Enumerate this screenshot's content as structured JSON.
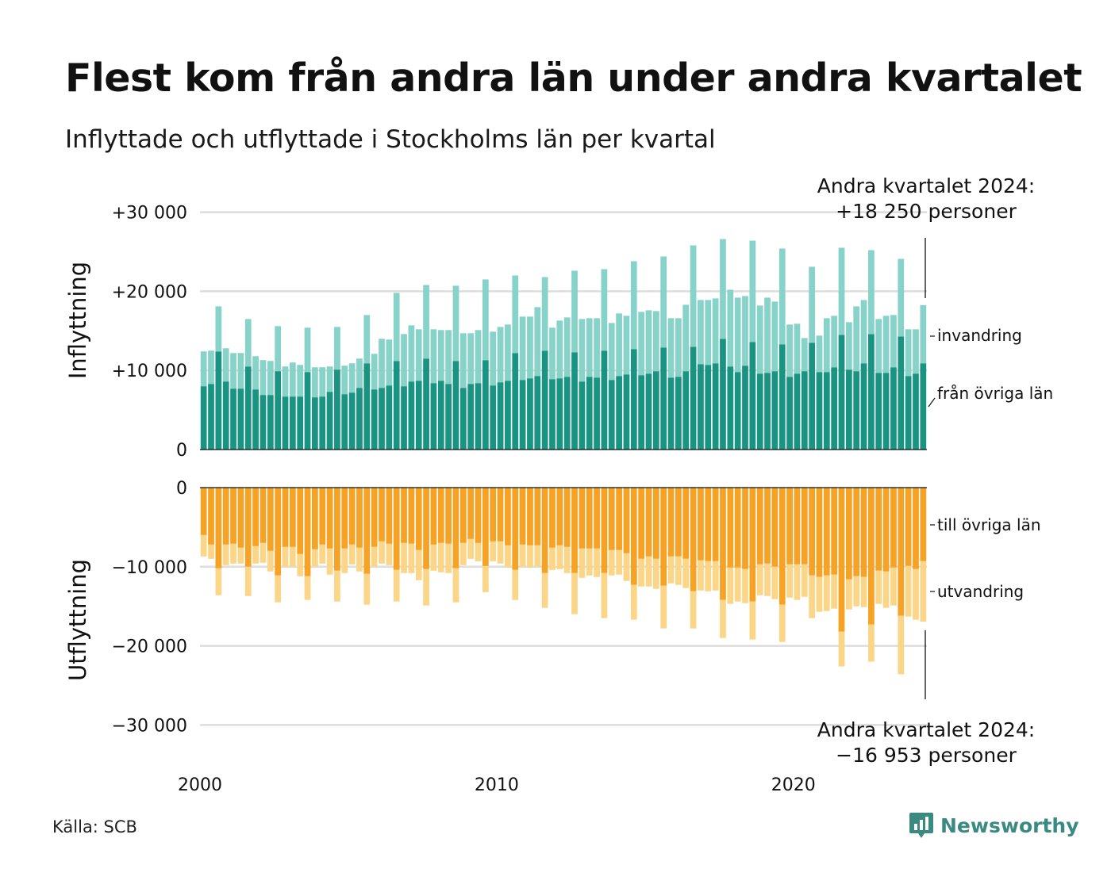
{
  "title": "Flest kom från andra län under andra kvartalet",
  "subtitle": "Inflyttade och utflyttade i Stockholms län per kvartal",
  "source": "Källa: SCB",
  "brand": "Newsworthy",
  "colors": {
    "from_other_counties": "#1a9482",
    "immigration": "#88d3c9",
    "to_other_counties": "#f5a225",
    "emigration": "#fbd588",
    "grid": "#dddddd",
    "brand": "#3b8a82"
  },
  "chart_data": {
    "type": "bar",
    "x_start": "2000 Q1",
    "x_end": "2024 Q2",
    "xticks": [
      "2000",
      "2010",
      "2020"
    ],
    "annotations": {
      "top": [
        "Andra kvartalet 2024:",
        "+18 250 personer"
      ],
      "bottom": [
        "Andra kvartalet 2024:",
        "−16 953 personer"
      ]
    },
    "top_panel": {
      "ylabel": "Inflyttning",
      "ylim": [
        0,
        30000
      ],
      "yticks": [
        {
          "value": 0,
          "label": "0"
        },
        {
          "value": 10000,
          "label": "+10 000"
        },
        {
          "value": 20000,
          "label": "+20 000"
        },
        {
          "value": 30000,
          "label": "+30 000"
        }
      ],
      "series": [
        {
          "name": "från övriga län",
          "values": [
            8000,
            8300,
            12400,
            8600,
            7700,
            7700,
            10500,
            7600,
            6900,
            6900,
            9900,
            6700,
            6700,
            6700,
            9800,
            6600,
            6700,
            7300,
            10100,
            7000,
            7200,
            7800,
            10900,
            7600,
            7800,
            8100,
            11200,
            8000,
            8600,
            8700,
            11500,
            8400,
            8700,
            8300,
            11200,
            7800,
            8300,
            8400,
            11300,
            8100,
            8500,
            8700,
            12200,
            8800,
            9000,
            9300,
            12500,
            8900,
            9000,
            9200,
            12300,
            8600,
            9200,
            9100,
            12500,
            8800,
            9300,
            9500,
            12700,
            9400,
            9600,
            9900,
            12900,
            9100,
            9200,
            9900,
            13000,
            10800,
            10700,
            10900,
            14000,
            10500,
            9800,
            10600,
            13600,
            9600,
            9700,
            9900,
            13300,
            9200,
            9600,
            9900,
            13500,
            9800,
            9800,
            10400,
            14500,
            10100,
            9900,
            10900,
            14600,
            9700,
            9700,
            10400,
            14300,
            9300,
            9600,
            10900
          ]
        },
        {
          "name": "invandring",
          "values": [
            4400,
            4200,
            5700,
            4200,
            4500,
            4500,
            6000,
            4200,
            4400,
            4300,
            5700,
            3800,
            4300,
            4000,
            5600,
            3800,
            3700,
            3200,
            5400,
            3600,
            3700,
            3700,
            6100,
            4500,
            6200,
            5800,
            8600,
            6600,
            7100,
            6500,
            9300,
            6800,
            6400,
            6800,
            9500,
            6900,
            6400,
            6700,
            10200,
            6800,
            7000,
            7100,
            9800,
            8000,
            7800,
            8700,
            9300,
            6500,
            7300,
            7500,
            10300,
            7900,
            7400,
            7500,
            10300,
            7200,
            7900,
            7400,
            11100,
            8000,
            8000,
            7600,
            11500,
            7500,
            7400,
            8400,
            12800,
            8100,
            8200,
            8200,
            12600,
            9700,
            9400,
            8800,
            12800,
            8600,
            9500,
            8800,
            12100,
            6600,
            6300,
            4200,
            9600,
            4600,
            6800,
            6500,
            11000,
            6000,
            8200,
            8000,
            10600,
            6800,
            7200,
            6600,
            9800,
            5900,
            5600,
            7350
          ]
        },
        {
          "name": "total",
          "values": [
            12400,
            12500,
            18100,
            12800,
            12200,
            12200,
            16500,
            11800,
            11300,
            11200,
            15600,
            10500,
            11000,
            10700,
            15400,
            10400,
            10400,
            10500,
            15500,
            10600,
            10900,
            11500,
            17000,
            12100,
            14000,
            13900,
            19800,
            14600,
            15700,
            15200,
            20800,
            15200,
            15100,
            15100,
            20700,
            14700,
            14700,
            15100,
            21500,
            14900,
            15500,
            15800,
            22000,
            16800,
            16800,
            18000,
            21800,
            15400,
            16300,
            16700,
            22600,
            16500,
            16600,
            16600,
            22800,
            16000,
            17200,
            16900,
            23800,
            17400,
            17600,
            17500,
            24400,
            16600,
            16600,
            18300,
            25800,
            18900,
            18900,
            19100,
            26600,
            20200,
            19200,
            19400,
            26400,
            18200,
            19200,
            18700,
            25400,
            15800,
            15900,
            14100,
            23100,
            14400,
            16600,
            16900,
            25500,
            16100,
            18100,
            18900,
            25200,
            16500,
            16900,
            17000,
            24100,
            15200,
            15200,
            18250
          ]
        }
      ]
    },
    "bottom_panel": {
      "ylabel": "Utflyttning",
      "ylim": [
        -30000,
        0
      ],
      "yticks": [
        {
          "value": 0,
          "label": "0"
        },
        {
          "value": -10000,
          "label": "−10 000"
        },
        {
          "value": -20000,
          "label": "−20 000"
        },
        {
          "value": -30000,
          "label": "−30 000"
        }
      ],
      "series": [
        {
          "name": "till övriga län",
          "values": [
            -6000,
            -7200,
            -10200,
            -7200,
            -7100,
            -7600,
            -10000,
            -7400,
            -7000,
            -8000,
            -11100,
            -7500,
            -7500,
            -8400,
            -11200,
            -7800,
            -7200,
            -7700,
            -10500,
            -7700,
            -7200,
            -7600,
            -10900,
            -7500,
            -6800,
            -7100,
            -10400,
            -7000,
            -7100,
            -7900,
            -10300,
            -7200,
            -7000,
            -7100,
            -10200,
            -7000,
            -6500,
            -7000,
            -9900,
            -6800,
            -6800,
            -7300,
            -10400,
            -7200,
            -7300,
            -7300,
            -10800,
            -7600,
            -7300,
            -7500,
            -10800,
            -7700,
            -7700,
            -7700,
            -10800,
            -7900,
            -7900,
            -8300,
            -12300,
            -9000,
            -8700,
            -9000,
            -12400,
            -8700,
            -8700,
            -9000,
            -13100,
            -9200,
            -9300,
            -9300,
            -14200,
            -10100,
            -10100,
            -10300,
            -14400,
            -9700,
            -9600,
            -10000,
            -14800,
            -9700,
            -9700,
            -9700,
            -11100,
            -11300,
            -11100,
            -11000,
            -18200,
            -11600,
            -11200,
            -11300,
            -17300,
            -10500,
            -10600,
            -10100,
            -16200,
            -9900,
            -10300,
            -9300
          ]
        },
        {
          "name": "utvandring",
          "values": [
            -2700,
            -1800,
            -3400,
            -2600,
            -2500,
            -2000,
            -3700,
            -2200,
            -2500,
            -2600,
            -3400,
            -2500,
            -2500,
            -2800,
            -3000,
            -2200,
            -2400,
            -3300,
            -3900,
            -3100,
            -2500,
            -3000,
            -3900,
            -2500,
            -2800,
            -2700,
            -4000,
            -3800,
            -3700,
            -3800,
            -4600,
            -3300,
            -3700,
            -3700,
            -4300,
            -2800,
            -2500,
            -2300,
            -3300,
            -2500,
            -2800,
            -2800,
            -3800,
            -2800,
            -2800,
            -2700,
            -4400,
            -2800,
            -3000,
            -3300,
            -5200,
            -3700,
            -3400,
            -3600,
            -5700,
            -3200,
            -3100,
            -3500,
            -4400,
            -3500,
            -3800,
            -3800,
            -5400,
            -3400,
            -3600,
            -3700,
            -4700,
            -3800,
            -3800,
            -3700,
            -4800,
            -4600,
            -4300,
            -4300,
            -4800,
            -3900,
            -4100,
            -4100,
            -4700,
            -4200,
            -4500,
            -4100,
            -5400,
            -4400,
            -4500,
            -4300,
            -4400,
            -3800,
            -3800,
            -3800,
            -4700,
            -4200,
            -4600,
            -4800,
            -7400,
            -6400,
            -6400,
            -7653
          ]
        }
      ]
    }
  }
}
